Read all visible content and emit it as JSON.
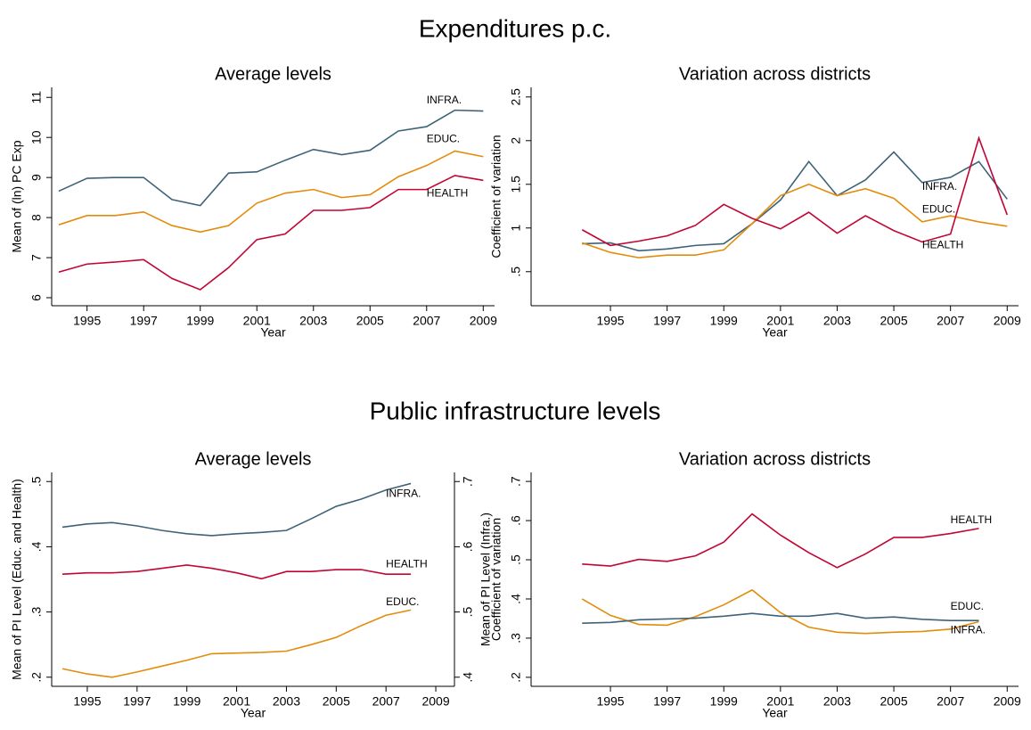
{
  "sections": [
    {
      "title": "Expenditures p.c."
    },
    {
      "title": "Public infrastructure levels"
    }
  ],
  "chart_data": [
    {
      "type": "line",
      "title": "Average levels",
      "x_label": "Year",
      "y_label": "Mean of (ln) PC Exp",
      "x": [
        1994,
        1995,
        1996,
        1997,
        1998,
        1999,
        2000,
        2001,
        2002,
        2003,
        2004,
        2005,
        2006,
        2007,
        2008,
        2009
      ],
      "xlim": [
        1993.75,
        2009.4
      ],
      "xticks": [
        1995,
        1997,
        1999,
        2001,
        2003,
        2005,
        2007,
        2009
      ],
      "ylim": [
        5.8,
        11.25
      ],
      "yticks": [
        6,
        7,
        8,
        9,
        10,
        11
      ],
      "series": [
        {
          "name": "INFRA.",
          "color": "#3e6378",
          "values": [
            8.66,
            8.98,
            9.0,
            9.0,
            8.45,
            8.3,
            9.11,
            9.14,
            9.43,
            9.7,
            9.57,
            9.68,
            10.16,
            10.27,
            10.68,
            10.66
          ]
        },
        {
          "name": "EDUC.",
          "color": "#e38c0c",
          "values": [
            7.82,
            8.05,
            8.05,
            8.14,
            7.8,
            7.64,
            7.8,
            8.36,
            8.61,
            8.7,
            8.5,
            8.57,
            9.02,
            9.3,
            9.66,
            9.52
          ]
        },
        {
          "name": "HEALTH",
          "color": "#c10534",
          "values": [
            6.64,
            6.84,
            6.89,
            6.95,
            6.48,
            6.2,
            6.75,
            7.45,
            7.59,
            8.18,
            8.18,
            8.25,
            8.7,
            8.7,
            9.05,
            8.93
          ]
        }
      ]
    },
    {
      "type": "line",
      "title": "Variation across districts",
      "x_label": "Year",
      "y_label": "Coefficient of variation",
      "x": [
        1994,
        1995,
        1996,
        1997,
        1998,
        1999,
        2000,
        2001,
        2002,
        2003,
        2004,
        2005,
        2006,
        2007,
        2008,
        2009
      ],
      "xlim": [
        1992.2,
        2009.4
      ],
      "xticks": [
        1995,
        1997,
        1999,
        2001,
        2003,
        2005,
        2007,
        2009
      ],
      "ylim": [
        0.11,
        2.61
      ],
      "yticks": [
        {
          "value": 0.5,
          "label": ".5"
        },
        1,
        1.5,
        2,
        2.5
      ],
      "series": [
        {
          "name": "INFRA.",
          "color": "#3e6378",
          "values": [
            0.82,
            0.83,
            0.74,
            0.76,
            0.8,
            0.82,
            1.05,
            1.32,
            1.76,
            1.37,
            1.55,
            1.87,
            1.52,
            1.58,
            1.76,
            1.33
          ]
        },
        {
          "name": "EDUC.",
          "color": "#e38c0c",
          "values": [
            0.83,
            0.72,
            0.66,
            0.69,
            0.69,
            0.75,
            1.05,
            1.37,
            1.5,
            1.37,
            1.45,
            1.34,
            1.07,
            1.14,
            1.07,
            1.02
          ]
        },
        {
          "name": "HEALTH",
          "color": "#c10534",
          "values": [
            0.98,
            0.8,
            0.85,
            0.91,
            1.03,
            1.27,
            1.11,
            0.99,
            1.18,
            0.94,
            1.14,
            0.97,
            0.84,
            0.93,
            2.03,
            1.15
          ]
        }
      ]
    },
    {
      "type": "line",
      "title": "Average levels",
      "x_label": "Year",
      "y_label": "Mean of PI Level (Educ. and Health)",
      "y2_label": "Mean of PI Level (Infra.)",
      "x": [
        1994,
        1995,
        1996,
        1997,
        1998,
        1999,
        2000,
        2001,
        2002,
        2003,
        2004,
        2005,
        2006,
        2007,
        2008
      ],
      "xlim": [
        1993.57,
        2009.75
      ],
      "xticks": [
        1995,
        1997,
        1999,
        2001,
        2003,
        2005,
        2007,
        2009
      ],
      "ylim": [
        0.186,
        0.514
      ],
      "yticks": [
        {
          "value": 0.2,
          "label": ".2"
        },
        {
          "value": 0.3,
          "label": ".3"
        },
        {
          "value": 0.4,
          "label": ".4"
        },
        {
          "value": 0.5,
          "label": ".5"
        }
      ],
      "y2lim": [
        0.386,
        0.714
      ],
      "y2ticks": [
        {
          "value": 0.4,
          "label": ".4"
        },
        {
          "value": 0.5,
          "label": ".5"
        },
        {
          "value": 0.6,
          "label": ".6"
        },
        {
          "value": 0.7,
          "label": ".7"
        }
      ],
      "series": [
        {
          "name": "INFRA.",
          "color": "#3e6378",
          "axis": "y2",
          "values": [
            0.63,
            0.635,
            0.637,
            0.632,
            0.625,
            0.62,
            0.617,
            0.62,
            0.622,
            0.625,
            0.643,
            0.662,
            0.673,
            0.687,
            0.697
          ]
        },
        {
          "name": "HEALTH",
          "color": "#c10534",
          "values": [
            0.358,
            0.36,
            0.36,
            0.362,
            0.367,
            0.372,
            0.367,
            0.36,
            0.351,
            0.362,
            0.362,
            0.365,
            0.365,
            0.358,
            0.358
          ]
        },
        {
          "name": "EDUC.",
          "color": "#e38c0c",
          "values": [
            0.213,
            0.205,
            0.2,
            0.208,
            0.217,
            0.226,
            0.236,
            0.237,
            0.238,
            0.24,
            0.25,
            0.261,
            0.279,
            0.295,
            0.303
          ]
        }
      ]
    },
    {
      "type": "line",
      "title": "Variation across districts",
      "x_label": "Year",
      "y_label": "Coefficient of variation",
      "x": [
        1994,
        1995,
        1996,
        1997,
        1998,
        1999,
        2000,
        2001,
        2002,
        2003,
        2004,
        2005,
        2006,
        2007,
        2008
      ],
      "xlim": [
        1992.2,
        2009.4
      ],
      "xticks": [
        1995,
        1997,
        1999,
        2001,
        2003,
        2005,
        2007,
        2009
      ],
      "ylim": [
        0.177,
        0.723
      ],
      "yticks": [
        {
          "value": 0.2,
          "label": ".2"
        },
        {
          "value": 0.3,
          "label": ".3"
        },
        {
          "value": 0.4,
          "label": ".4"
        },
        {
          "value": 0.5,
          "label": ".5"
        },
        {
          "value": 0.6,
          "label": ".6"
        },
        {
          "value": 0.7,
          "label": ".7"
        }
      ],
      "series": [
        {
          "name": "HEALTH",
          "color": "#c10534",
          "values": [
            0.489,
            0.484,
            0.501,
            0.496,
            0.51,
            0.545,
            0.617,
            0.563,
            0.518,
            0.48,
            0.515,
            0.557,
            0.557,
            0.567,
            0.58
          ]
        },
        {
          "name": "EDUC.",
          "color": "#e38c0c",
          "values": [
            0.4,
            0.358,
            0.335,
            0.333,
            0.355,
            0.385,
            0.423,
            0.365,
            0.328,
            0.315,
            0.312,
            0.315,
            0.317,
            0.323,
            0.342
          ]
        },
        {
          "name": "INFRA.",
          "color": "#3e6378",
          "values": [
            0.338,
            0.34,
            0.347,
            0.349,
            0.351,
            0.356,
            0.363,
            0.356,
            0.356,
            0.363,
            0.351,
            0.354,
            0.348,
            0.345,
            0.345
          ]
        }
      ]
    }
  ]
}
